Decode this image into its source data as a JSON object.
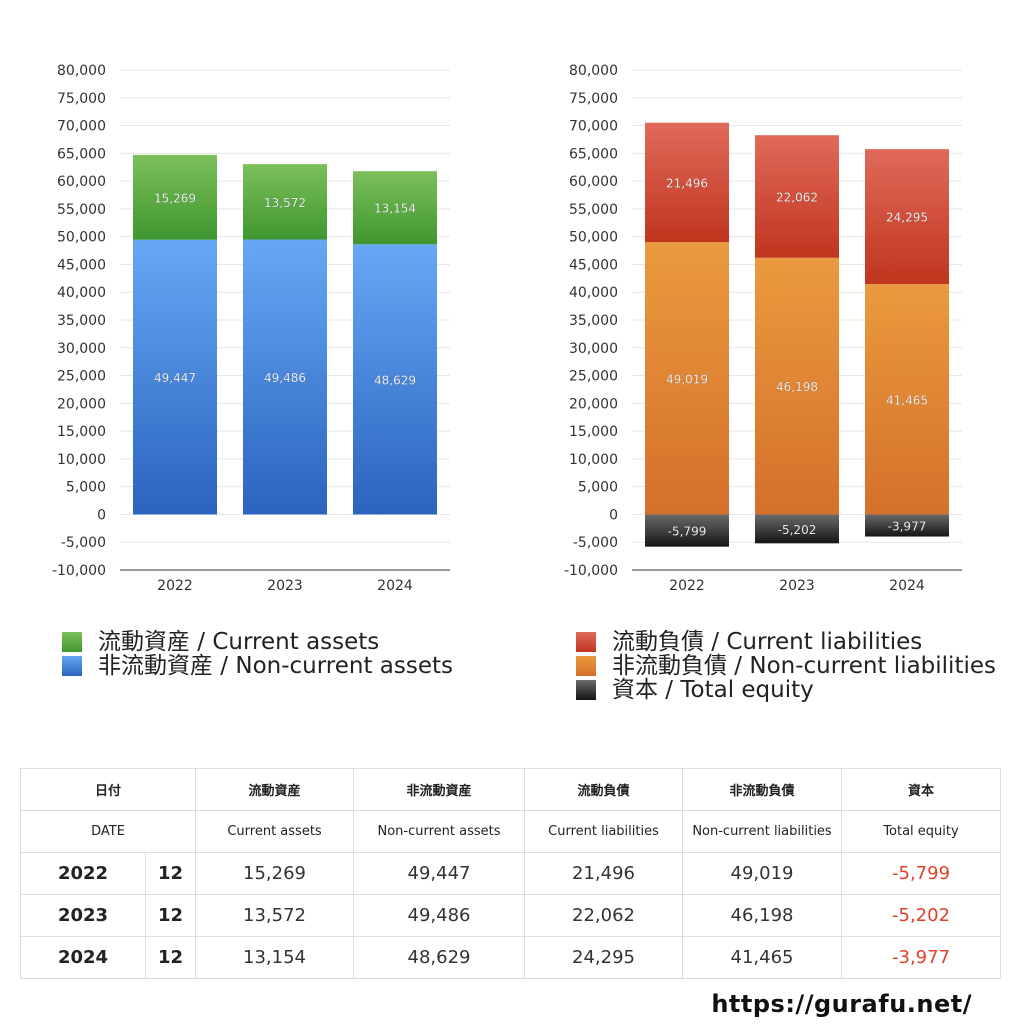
{
  "chart_data": [
    {
      "type": "bar",
      "stacked": true,
      "title": "",
      "xlabel": "",
      "ylabel": "",
      "categories": [
        "2022",
        "2023",
        "2024"
      ],
      "ylim": [
        -10000,
        80000
      ],
      "yticks": [
        80000,
        75000,
        70000,
        65000,
        60000,
        55000,
        50000,
        45000,
        40000,
        35000,
        30000,
        25000,
        20000,
        15000,
        10000,
        5000,
        0,
        -5000,
        -10000
      ],
      "ytick_labels": [
        "80,000",
        "75,000",
        "70,000",
        "65,000",
        "60,000",
        "55,000",
        "50,000",
        "45,000",
        "40,000",
        "35,000",
        "30,000",
        "25,000",
        "20,000",
        "15,000",
        "10,000",
        "5,000",
        "0",
        "-5,000",
        "-10,000"
      ],
      "series": [
        {
          "name": "非流動資産 / Non-current assets",
          "key": "noncurrent_assets",
          "values": [
            49447,
            49486,
            48629
          ],
          "labels": [
            "49,447",
            "49,486",
            "48,629"
          ],
          "color_top": "#66a8f5",
          "color_bottom": "#2b63bf"
        },
        {
          "name": "流動資産 / Current assets",
          "key": "current_assets",
          "values": [
            15269,
            13572,
            13154
          ],
          "labels": [
            "15,269",
            "13,572",
            "13,154"
          ],
          "color_top": "#7cc05a",
          "color_bottom": "#3f9630"
        }
      ],
      "legend_position": "bottom-left"
    },
    {
      "type": "bar",
      "stacked": true,
      "title": "",
      "xlabel": "",
      "ylabel": "",
      "categories": [
        "2022",
        "2023",
        "2024"
      ],
      "ylim": [
        -10000,
        80000
      ],
      "yticks": [
        80000,
        75000,
        70000,
        65000,
        60000,
        55000,
        50000,
        45000,
        40000,
        35000,
        30000,
        25000,
        20000,
        15000,
        10000,
        5000,
        0,
        -5000,
        -10000
      ],
      "ytick_labels": [
        "80,000",
        "75,000",
        "70,000",
        "65,000",
        "60,000",
        "55,000",
        "50,000",
        "45,000",
        "40,000",
        "35,000",
        "30,000",
        "25,000",
        "20,000",
        "15,000",
        "10,000",
        "5,000",
        "0",
        "-5,000",
        "-10,000"
      ],
      "series": [
        {
          "name": "非流動負債 / Non-current liabilities",
          "key": "noncurrent_liabilities",
          "values": [
            49019,
            46198,
            41465
          ],
          "labels": [
            "49,019",
            "46,198",
            "41,465"
          ],
          "color_top": "#ea9a3e",
          "color_bottom": "#d4702a"
        },
        {
          "name": "流動負債 / Current liabilities",
          "key": "current_liabilities",
          "values": [
            21496,
            22062,
            24295
          ],
          "labels": [
            "21,496",
            "22,062",
            "24,295"
          ],
          "color_top": "#e06a5a",
          "color_bottom": "#c0351e"
        },
        {
          "name": "資本 / Total equity",
          "key": "total_equity",
          "values": [
            -5799,
            -5202,
            -3977
          ],
          "labels": [
            "-5,799",
            "-5,202",
            "-3,977"
          ],
          "color_top": "#6a6a6a",
          "color_bottom": "#151515"
        }
      ],
      "legend_position": "bottom-left"
    }
  ],
  "legend_left": [
    {
      "label": "流動資産 / Current assets",
      "color": "#4ea83a"
    },
    {
      "label": "非流動資産 / Non-current assets",
      "color": "#4a8ee6"
    }
  ],
  "legend_right": [
    {
      "label": "流動負債 / Current liabilities",
      "color": "#d24a35"
    },
    {
      "label": "非流動負債 / Non-current liabilities",
      "color": "#e0883a"
    },
    {
      "label": "資本 / Total equity",
      "color": "#2a2a2a"
    }
  ],
  "table": {
    "header_jp": {
      "date": "日付",
      "ca": "流動資産",
      "nca": "非流動資産",
      "cl": "流動負債",
      "ncl": "非流動負債",
      "eq": "資本"
    },
    "header_en": {
      "date": "DATE",
      "ca": "Current assets",
      "nca": "Non-current assets",
      "cl": "Current liabilities",
      "ncl": "Non-current liabilities",
      "eq": "Total equity"
    },
    "rows": [
      {
        "year": "2022",
        "month": "12",
        "ca": "15,269",
        "nca": "49,447",
        "cl": "21,496",
        "ncl": "49,019",
        "eq": "-5,799"
      },
      {
        "year": "2023",
        "month": "12",
        "ca": "13,572",
        "nca": "49,486",
        "cl": "22,062",
        "ncl": "46,198",
        "eq": "-5,202"
      },
      {
        "year": "2024",
        "month": "12",
        "ca": "13,154",
        "nca": "48,629",
        "cl": "24,295",
        "ncl": "41,465",
        "eq": "-3,977"
      }
    ]
  },
  "footer": {
    "url": "https://gurafu.net/"
  },
  "colors": {
    "negative": "#e0412a",
    "grid": "#e6e6e6",
    "axis": "#333333"
  }
}
